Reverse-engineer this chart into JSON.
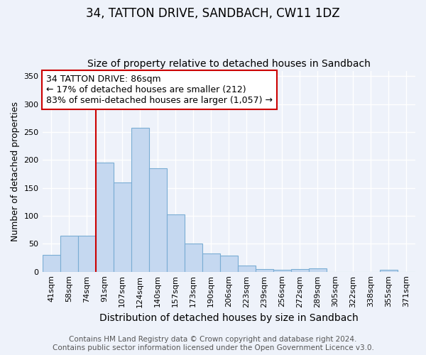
{
  "title": "34, TATTON DRIVE, SANDBACH, CW11 1DZ",
  "subtitle": "Size of property relative to detached houses in Sandbach",
  "xlabel": "Distribution of detached houses by size in Sandbach",
  "ylabel": "Number of detached properties",
  "categories": [
    "41sqm",
    "58sqm",
    "74sqm",
    "91sqm",
    "107sqm",
    "124sqm",
    "140sqm",
    "157sqm",
    "173sqm",
    "190sqm",
    "206sqm",
    "223sqm",
    "239sqm",
    "256sqm",
    "272sqm",
    "289sqm",
    "305sqm",
    "322sqm",
    "338sqm",
    "355sqm",
    "371sqm"
  ],
  "values": [
    30,
    65,
    65,
    195,
    160,
    258,
    185,
    103,
    50,
    33,
    29,
    11,
    5,
    4,
    5,
    6,
    0,
    0,
    0,
    3,
    0
  ],
  "bar_color": "#c5d8f0",
  "bar_edge_color": "#7aadd4",
  "annotation_line1": "34 TATTON DRIVE: 86sqm",
  "annotation_line2": "← 17% of detached houses are smaller (212)",
  "annotation_line3": "83% of semi-detached houses are larger (1,057) →",
  "annotation_box_color": "#ffffff",
  "annotation_box_edge_color": "#cc0000",
  "vline_color": "#cc0000",
  "vline_pos": 2.5,
  "ylim": [
    0,
    360
  ],
  "yticks": [
    0,
    50,
    100,
    150,
    200,
    250,
    300,
    350
  ],
  "footer_text": "Contains HM Land Registry data © Crown copyright and database right 2024.\nContains public sector information licensed under the Open Government Licence v3.0.",
  "background_color": "#eef2fa",
  "grid_color": "#ffffff",
  "title_fontsize": 12,
  "subtitle_fontsize": 10,
  "xlabel_fontsize": 10,
  "ylabel_fontsize": 9,
  "tick_fontsize": 8,
  "annotation_fontsize": 9,
  "footer_fontsize": 7.5
}
